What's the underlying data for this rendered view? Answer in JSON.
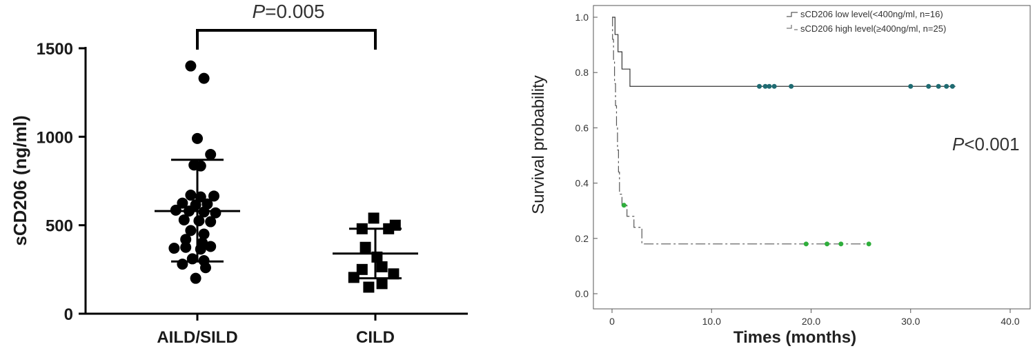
{
  "colors": {
    "dot": "#000000",
    "low_censor": "#1f6b72",
    "high_censor": "#2fae3c",
    "low_line": "#333333",
    "high_line": "#555555"
  },
  "chart_data": [
    {
      "type": "scatter",
      "title": "",
      "categories": [
        "AILD/SILD",
        "CILD"
      ],
      "ylabel": "sCD206 (ng/ml)",
      "ylim": [
        0,
        1500
      ],
      "yticks": [
        "0",
        "500",
        "1000",
        "1500"
      ],
      "annotation": {
        "p_italic": "P",
        "p_rest": "=0.005"
      },
      "series": [
        {
          "category": "AILD/SILD",
          "mean": 580,
          "sd_low": 295,
          "sd_high": 870,
          "points": [
            {
              "offset": -0.2,
              "v": 1400
            },
            {
              "offset": 0.2,
              "v": 1330
            },
            {
              "offset": 0,
              "v": 990
            },
            {
              "offset": 0.4,
              "v": 900
            },
            {
              "offset": -0.1,
              "v": 840
            },
            {
              "offset": 0.1,
              "v": 835
            },
            {
              "offset": -0.2,
              "v": 670
            },
            {
              "offset": 0.1,
              "v": 660
            },
            {
              "offset": 0.5,
              "v": 665
            },
            {
              "offset": -0.45,
              "v": 625
            },
            {
              "offset": -0.05,
              "v": 615
            },
            {
              "offset": 0.3,
              "v": 620
            },
            {
              "offset": -0.65,
              "v": 585
            },
            {
              "offset": -0.25,
              "v": 580
            },
            {
              "offset": 0.2,
              "v": 575
            },
            {
              "offset": 0.55,
              "v": 570
            },
            {
              "offset": -0.4,
              "v": 530
            },
            {
              "offset": 0.05,
              "v": 525
            },
            {
              "offset": 0.4,
              "v": 520
            },
            {
              "offset": -0.2,
              "v": 470
            },
            {
              "offset": 0.2,
              "v": 450
            },
            {
              "offset": -0.35,
              "v": 420
            },
            {
              "offset": 0.15,
              "v": 400
            },
            {
              "offset": -0.7,
              "v": 370
            },
            {
              "offset": -0.35,
              "v": 375
            },
            {
              "offset": 0.1,
              "v": 365
            },
            {
              "offset": 0.4,
              "v": 380
            },
            {
              "offset": -0.15,
              "v": 310
            },
            {
              "offset": 0.2,
              "v": 300
            },
            {
              "offset": -0.45,
              "v": 280
            },
            {
              "offset": 0.25,
              "v": 260
            },
            {
              "offset": -0.05,
              "v": 200
            }
          ]
        },
        {
          "category": "CILD",
          "mean": 340,
          "sd_low": 200,
          "sd_high": 480,
          "points": [
            {
              "offset": -0.05,
              "v": 540
            },
            {
              "offset": 0.6,
              "v": 500
            },
            {
              "offset": -0.4,
              "v": 480
            },
            {
              "offset": 0.4,
              "v": 480
            },
            {
              "offset": -0.3,
              "v": 375
            },
            {
              "offset": 0.05,
              "v": 320
            },
            {
              "offset": -0.4,
              "v": 250
            },
            {
              "offset": 0.2,
              "v": 265
            },
            {
              "offset": -0.65,
              "v": 205
            },
            {
              "offset": 0.55,
              "v": 225
            },
            {
              "offset": -0.2,
              "v": 150
            },
            {
              "offset": 0.2,
              "v": 170
            }
          ]
        }
      ]
    },
    {
      "type": "line",
      "title": "",
      "xlabel": "Times (months)",
      "ylabel": "Survival probability",
      "xlim": [
        0,
        40
      ],
      "ylim": [
        0,
        1
      ],
      "xticks": [
        "0",
        "10.0",
        "20.0",
        "30.0",
        "40.0"
      ],
      "yticks": [
        "0.0",
        "0.2",
        "0.4",
        "0.6",
        "0.8",
        "1.0"
      ],
      "annotation": {
        "p_italic": "P",
        "p_rest": "<0.001"
      },
      "series": [
        {
          "name": "sCD206 low level(<400ng/ml, n=16)",
          "style": "solid",
          "steps": [
            [
              0,
              1.0
            ],
            [
              0.3,
              0.9375
            ],
            [
              0.6,
              0.875
            ],
            [
              1.0,
              0.8125
            ],
            [
              1.8,
              0.75
            ],
            [
              34.5,
              0.75
            ]
          ],
          "censored": [
            [
              14.8,
              0.75
            ],
            [
              15.4,
              0.75
            ],
            [
              15.8,
              0.75
            ],
            [
              16.3,
              0.75
            ],
            [
              18.0,
              0.75
            ],
            [
              30.0,
              0.75
            ],
            [
              31.8,
              0.75
            ],
            [
              32.8,
              0.75
            ],
            [
              33.6,
              0.75
            ],
            [
              34.2,
              0.75
            ]
          ]
        },
        {
          "name": "sCD206 high level(≥400ng/ml, n=25)",
          "style": "dashdot",
          "steps": [
            [
              0,
              1.0
            ],
            [
              0.05,
              0.92
            ],
            [
              0.15,
              0.84
            ],
            [
              0.25,
              0.76
            ],
            [
              0.35,
              0.68
            ],
            [
              0.45,
              0.6
            ],
            [
              0.55,
              0.52
            ],
            [
              0.65,
              0.44
            ],
            [
              0.75,
              0.36
            ],
            [
              1.0,
              0.32
            ],
            [
              1.5,
              0.28
            ],
            [
              2.2,
              0.24
            ],
            [
              3.0,
              0.18
            ],
            [
              26.0,
              0.18
            ]
          ],
          "censored": [
            [
              1.2,
              0.32
            ],
            [
              19.5,
              0.18
            ],
            [
              21.6,
              0.18
            ],
            [
              23.0,
              0.18
            ],
            [
              25.8,
              0.18
            ]
          ]
        }
      ]
    }
  ]
}
